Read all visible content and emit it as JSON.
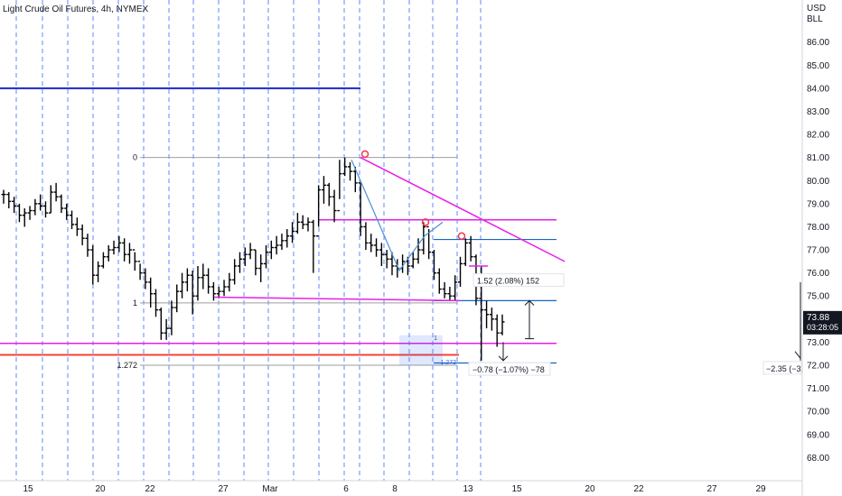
{
  "chart_data": {
    "type": "ohlc",
    "title": "Light Crude Oil Futures, 4h, NYMEX",
    "currency": "USD",
    "unit": "BLL",
    "ylim": [
      67.0,
      87.2
    ],
    "y_ticks": [
      68,
      69,
      70,
      71,
      72,
      73,
      74,
      75,
      76,
      77,
      78,
      79,
      80,
      81,
      82,
      83,
      84,
      85,
      86
    ],
    "x_ticks": [
      "15",
      "20",
      "22",
      "27",
      "Mar",
      "6",
      "8",
      "13",
      "15",
      "20",
      "22",
      "27",
      "29"
    ],
    "price_tag": {
      "price": "73.88",
      "countdown": "03:28:05"
    },
    "colors": {
      "bars": "#000000",
      "session_lines": "#2962ff",
      "trendlines": "#e91ee9",
      "horizontal_support": "#1565c0",
      "resistance_top": "#1a2bc2",
      "orange_level": "#f44336",
      "fib": "#9e9e9e",
      "swing_markers": "#f23645"
    },
    "levels": {
      "blue_top": 84.0,
      "magenta_mid": 78.3,
      "magenta_low_a": 74.9,
      "magenta_low_b": 72.95,
      "orange": 72.45,
      "blue_right_a": 77.45,
      "blue_right_b": 74.8,
      "blue_right_c": 72.1
    },
    "fib": {
      "labels": [
        "0",
        "1",
        "1.272"
      ],
      "prices": [
        81.0,
        74.7,
        72.0
      ],
      "small_labels": [
        "1",
        "1.272"
      ]
    },
    "measurements": {
      "up": "1.52 (2.08%) 152",
      "down": "−0.78 (−1.07%) −78",
      "far_right": "−2.35 (−3."
    },
    "series": [
      {
        "values": [
          [
            79.6,
            79.0,
            79.4
          ],
          [
            79.5,
            78.8,
            79.1
          ],
          [
            79.3,
            78.6,
            78.9
          ],
          [
            79.0,
            78.2,
            78.5
          ],
          [
            78.8,
            78.0,
            78.6
          ],
          [
            78.9,
            78.3,
            78.7
          ],
          [
            79.2,
            78.5,
            79.0
          ],
          [
            79.4,
            78.7,
            78.9
          ],
          [
            79.1,
            78.4,
            78.6
          ],
          [
            79.8,
            78.6,
            79.5
          ],
          [
            79.9,
            79.1,
            79.3
          ],
          [
            79.4,
            78.6,
            78.8
          ],
          [
            79.0,
            78.3,
            78.5
          ],
          [
            78.7,
            77.9,
            78.1
          ],
          [
            78.4,
            77.6,
            77.9
          ],
          [
            78.1,
            77.2,
            77.5
          ],
          [
            77.7,
            76.7,
            77.0
          ],
          [
            77.2,
            75.5,
            75.9
          ],
          [
            76.5,
            75.6,
            76.3
          ],
          [
            76.9,
            76.2,
            76.7
          ],
          [
            77.2,
            76.5,
            77.0
          ],
          [
            77.4,
            76.8,
            77.1
          ],
          [
            77.6,
            76.9,
            77.3
          ],
          [
            77.5,
            76.5,
            76.8
          ],
          [
            77.3,
            76.4,
            77.0
          ],
          [
            76.9,
            76.1,
            76.5
          ],
          [
            76.4,
            75.7,
            76.0
          ],
          [
            76.2,
            75.3,
            75.6
          ],
          [
            75.8,
            74.5,
            75.1
          ],
          [
            75.3,
            74.1,
            74.4
          ],
          [
            74.5,
            73.1,
            73.4
          ],
          [
            74.0,
            73.1,
            73.6
          ],
          [
            74.8,
            73.3,
            74.5
          ],
          [
            75.5,
            74.3,
            75.2
          ],
          [
            76.0,
            74.9,
            75.6
          ],
          [
            76.2,
            75.2,
            75.9
          ],
          [
            76.1,
            74.2,
            75.0
          ],
          [
            76.3,
            74.8,
            75.8
          ],
          [
            76.4,
            75.3,
            75.9
          ],
          [
            76.2,
            75.1,
            75.4
          ],
          [
            75.6,
            74.8,
            75.1
          ],
          [
            75.4,
            74.9,
            75.2
          ],
          [
            75.7,
            75.0,
            75.4
          ],
          [
            76.0,
            75.2,
            75.7
          ],
          [
            76.6,
            75.5,
            76.3
          ],
          [
            76.9,
            76.0,
            76.6
          ],
          [
            77.1,
            76.3,
            76.8
          ],
          [
            77.3,
            76.6,
            77.0
          ],
          [
            77.0,
            75.9,
            76.2
          ],
          [
            76.8,
            75.6,
            76.4
          ],
          [
            77.2,
            76.2,
            76.9
          ],
          [
            77.4,
            76.6,
            77.1
          ],
          [
            77.6,
            76.8,
            77.2
          ],
          [
            77.7,
            77.0,
            77.4
          ],
          [
            77.9,
            77.1,
            77.6
          ],
          [
            78.2,
            77.3,
            77.8
          ],
          [
            78.6,
            77.7,
            78.2
          ],
          [
            78.5,
            77.9,
            78.1
          ],
          [
            78.4,
            77.8,
            78.2
          ],
          [
            78.3,
            76.0,
            77.6
          ],
          [
            79.8,
            78.0,
            79.6
          ],
          [
            80.2,
            79.0,
            79.8
          ],
          [
            79.9,
            78.9,
            79.3
          ],
          [
            79.6,
            78.2,
            78.7
          ],
          [
            80.9,
            79.2,
            80.3
          ],
          [
            81.0,
            80.2,
            80.6
          ],
          [
            80.8,
            80.0,
            80.4
          ],
          [
            80.6,
            79.5,
            79.9
          ],
          [
            79.9,
            77.6,
            78.0
          ],
          [
            78.2,
            77.0,
            77.3
          ],
          [
            77.7,
            76.9,
            77.2
          ],
          [
            77.5,
            76.7,
            77.0
          ],
          [
            77.3,
            76.3,
            76.8
          ],
          [
            77.0,
            76.2,
            76.6
          ],
          [
            76.9,
            75.9,
            76.3
          ],
          [
            76.6,
            75.8,
            76.2
          ],
          [
            76.8,
            76.0,
            76.5
          ],
          [
            76.7,
            75.9,
            76.3
          ],
          [
            76.9,
            76.2,
            76.6
          ],
          [
            77.5,
            76.4,
            77.0
          ],
          [
            78.2,
            76.8,
            78.0
          ],
          [
            77.9,
            76.6,
            76.9
          ],
          [
            77.0,
            75.7,
            76.0
          ],
          [
            76.2,
            75.1,
            75.3
          ],
          [
            75.6,
            74.9,
            75.1
          ],
          [
            75.4,
            74.8,
            75.0
          ],
          [
            75.9,
            74.8,
            75.6
          ],
          [
            76.7,
            75.4,
            76.4
          ],
          [
            77.5,
            76.3,
            77.3
          ],
          [
            77.6,
            76.5,
            76.7
          ],
          [
            76.8,
            74.6,
            74.9
          ],
          [
            76.3,
            72.2,
            74.4
          ],
          [
            74.8,
            73.6,
            74.2
          ],
          [
            74.5,
            73.5,
            74.0
          ],
          [
            74.2,
            72.8,
            73.4
          ],
          [
            74.2,
            73.3,
            73.88
          ]
        ]
      }
    ]
  }
}
